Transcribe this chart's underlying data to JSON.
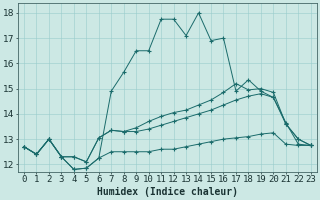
{
  "xlabel": "Humidex (Indice chaleur)",
  "background_color": "#cce8e4",
  "grid_color": "#99cccc",
  "line_color": "#1a6b6b",
  "xlim": [
    -0.5,
    23.5
  ],
  "ylim": [
    11.7,
    18.4
  ],
  "yticks": [
    12,
    13,
    14,
    15,
    16,
    17,
    18
  ],
  "xticks": [
    0,
    1,
    2,
    3,
    4,
    5,
    6,
    7,
    8,
    9,
    10,
    11,
    12,
    13,
    14,
    15,
    16,
    17,
    18,
    19,
    20,
    21,
    22,
    23
  ],
  "xtick_labels": [
    "0",
    "1",
    "2",
    "3",
    "4",
    "5",
    "6",
    "7",
    "8",
    "9",
    "10",
    "11",
    "12",
    "13",
    "14",
    "15",
    "16",
    "17",
    "18",
    "19",
    "20",
    "21",
    "22",
    "23"
  ],
  "line1_x": [
    0,
    1,
    2,
    3,
    4,
    5,
    6,
    7,
    8,
    9,
    10,
    11,
    12,
    13,
    14,
    15,
    16,
    17,
    18,
    19,
    20,
    21,
    22,
    23
  ],
  "line1_y": [
    12.7,
    12.4,
    13.0,
    12.3,
    11.8,
    11.85,
    12.25,
    12.5,
    12.5,
    12.5,
    12.5,
    12.6,
    12.6,
    12.7,
    12.8,
    12.9,
    13.0,
    13.05,
    13.1,
    13.2,
    13.25,
    12.8,
    12.75,
    12.75
  ],
  "line2_x": [
    0,
    1,
    2,
    3,
    4,
    5,
    6,
    7,
    8,
    9,
    10,
    11,
    12,
    13,
    14,
    15,
    16,
    17,
    18,
    19,
    20,
    21,
    22,
    23
  ],
  "line2_y": [
    12.7,
    12.4,
    13.0,
    12.3,
    12.3,
    12.1,
    13.05,
    13.35,
    13.3,
    13.3,
    13.4,
    13.55,
    13.7,
    13.85,
    14.0,
    14.15,
    14.35,
    14.55,
    14.7,
    14.8,
    14.65,
    13.6,
    13.0,
    12.75
  ],
  "line3_x": [
    0,
    1,
    2,
    3,
    4,
    5,
    6,
    7,
    8,
    9,
    10,
    11,
    12,
    13,
    14,
    15,
    16,
    17,
    18,
    19,
    20,
    21,
    22,
    23
  ],
  "line3_y": [
    12.7,
    12.4,
    13.0,
    12.3,
    12.3,
    12.1,
    13.05,
    13.35,
    13.3,
    13.45,
    13.7,
    13.9,
    14.05,
    14.15,
    14.35,
    14.55,
    14.85,
    15.2,
    14.95,
    15.0,
    14.85,
    13.6,
    13.0,
    12.75
  ],
  "line4_x": [
    0,
    1,
    2,
    3,
    4,
    5,
    6,
    7,
    8,
    9,
    10,
    11,
    12,
    13,
    14,
    15,
    16,
    17,
    18,
    19,
    20,
    21,
    22,
    23
  ],
  "line4_y": [
    12.7,
    12.4,
    13.0,
    12.3,
    11.8,
    11.85,
    12.25,
    14.9,
    15.65,
    16.5,
    16.5,
    17.75,
    17.75,
    17.1,
    18.0,
    16.9,
    17.0,
    14.9,
    15.35,
    14.9,
    14.65,
    13.65,
    12.8,
    12.75
  ],
  "xlabel_fontsize": 7,
  "tick_fontsize": 6.5
}
